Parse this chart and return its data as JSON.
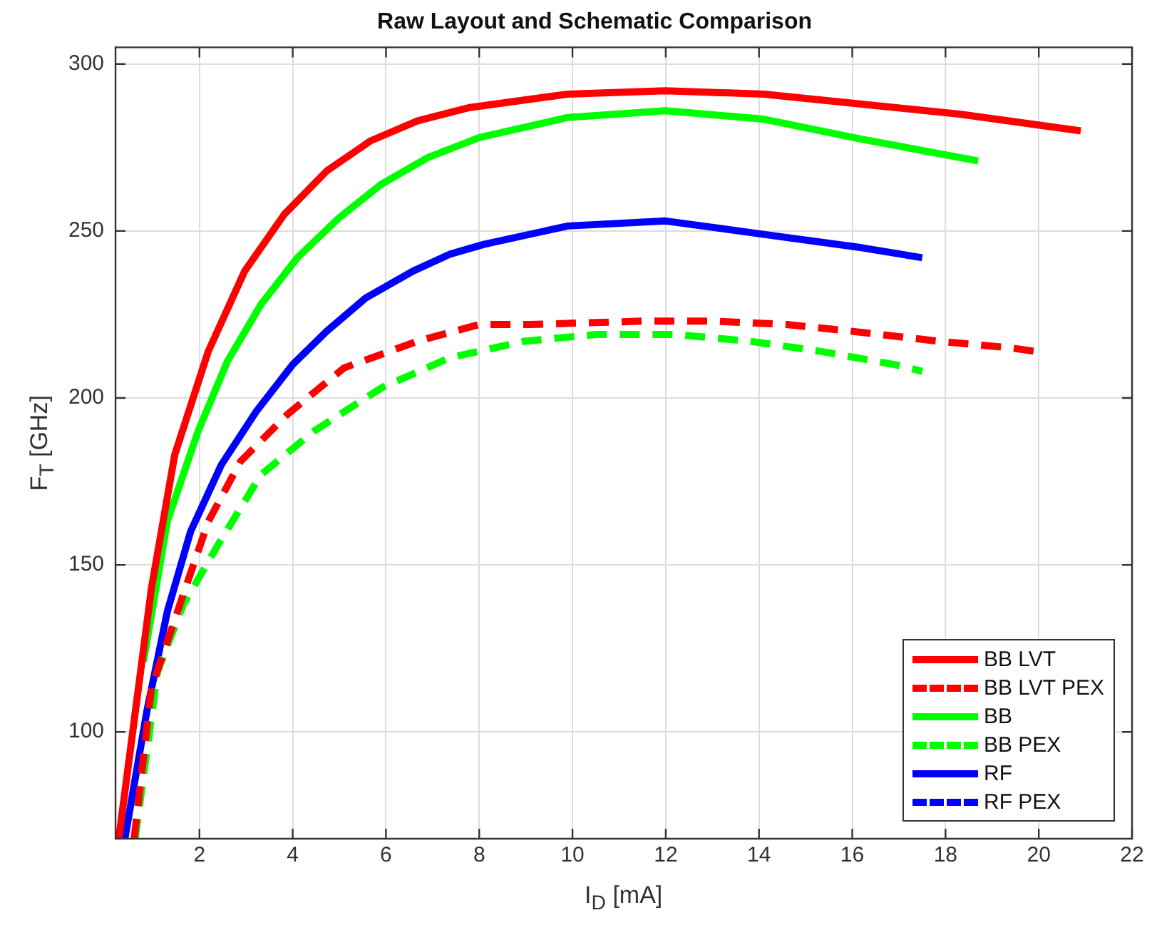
{
  "chart_data": {
    "type": "line",
    "title": "Raw Layout and Schematic Comparison",
    "xlabel": "I$_{D}$ [mA]",
    "ylabel": "F$_{T}$ [GHz]",
    "xlim": [
      0.2,
      22
    ],
    "xticks": [
      2,
      4,
      6,
      8,
      10,
      12,
      14,
      16,
      18,
      20,
      22
    ],
    "ylim": [
      68,
      305
    ],
    "yticks": [
      100,
      150,
      200,
      250,
      300
    ],
    "grid": true,
    "legend": "bottom right",
    "marker": "none",
    "series": [
      {
        "name": "BB LVT",
        "color": "#ff0000",
        "line_style": "solid",
        "x": [
          0.27,
          0.97,
          1.47,
          2.19,
          2.97,
          3.82,
          4.73,
          5.67,
          6.68,
          7.8,
          9.9,
          12,
          14.1,
          16.2,
          18.3,
          20.9
        ],
        "values": [
          68,
          143,
          183,
          214,
          238,
          255,
          268,
          277,
          283,
          287,
          291,
          292,
          291,
          288,
          285,
          280
        ]
      },
      {
        "name": "BB LVT PEX",
        "color": "#ff0000",
        "line_style": "dashed",
        "x": [
          0.6,
          0.97,
          1.65,
          2.19,
          2.88,
          3.88,
          5.1,
          6.68,
          8.0,
          9.07,
          11.5,
          13.05,
          14.6,
          16.3,
          17.85,
          19.4,
          19.9
        ],
        "values": [
          68,
          113,
          141,
          163,
          181,
          195,
          209,
          217,
          222,
          222,
          223,
          223,
          222,
          219.5,
          217,
          215,
          214
        ]
      },
      {
        "name": "BB",
        "color": "#00ff00",
        "line_style": "solid",
        "x": [
          0.8,
          1.31,
          1.97,
          2.6,
          3.32,
          4.1,
          5.0,
          5.9,
          6.9,
          8.0,
          9.9,
          12,
          14.1,
          16.2,
          18.7
        ],
        "values": [
          121,
          163,
          190,
          211,
          228,
          242,
          254,
          264,
          272,
          278,
          284,
          286,
          283.5,
          277.5,
          271
        ]
      },
      {
        "name": "BB PEX",
        "color": "#00ff00",
        "line_style": "dashed",
        "x": [
          0.62,
          1.1,
          1.65,
          2.44,
          3.32,
          4.45,
          5.9,
          7.36,
          8.97,
          10.5,
          12.2,
          13.8,
          15.3,
          16.9,
          17.5
        ],
        "values": [
          68,
          118,
          138,
          157,
          177,
          190,
          203,
          212,
          217,
          219,
          219,
          217,
          214,
          210,
          208
        ]
      },
      {
        "name": "RF",
        "color": "#0000ff",
        "line_style": "solid",
        "x": [
          0.4,
          0.87,
          1.31,
          1.81,
          2.47,
          3.22,
          4.0,
          4.73,
          5.57,
          6.58,
          7.36,
          8.1,
          9.9,
          12,
          14.1,
          16.2,
          17.5
        ],
        "values": [
          68,
          106,
          136,
          160,
          180,
          196,
          210,
          220,
          230,
          238,
          243,
          246,
          251.5,
          253,
          249,
          245,
          242
        ]
      },
      {
        "name": "RF PEX",
        "color": "#0000ff",
        "line_style": "dashed"
      }
    ]
  }
}
